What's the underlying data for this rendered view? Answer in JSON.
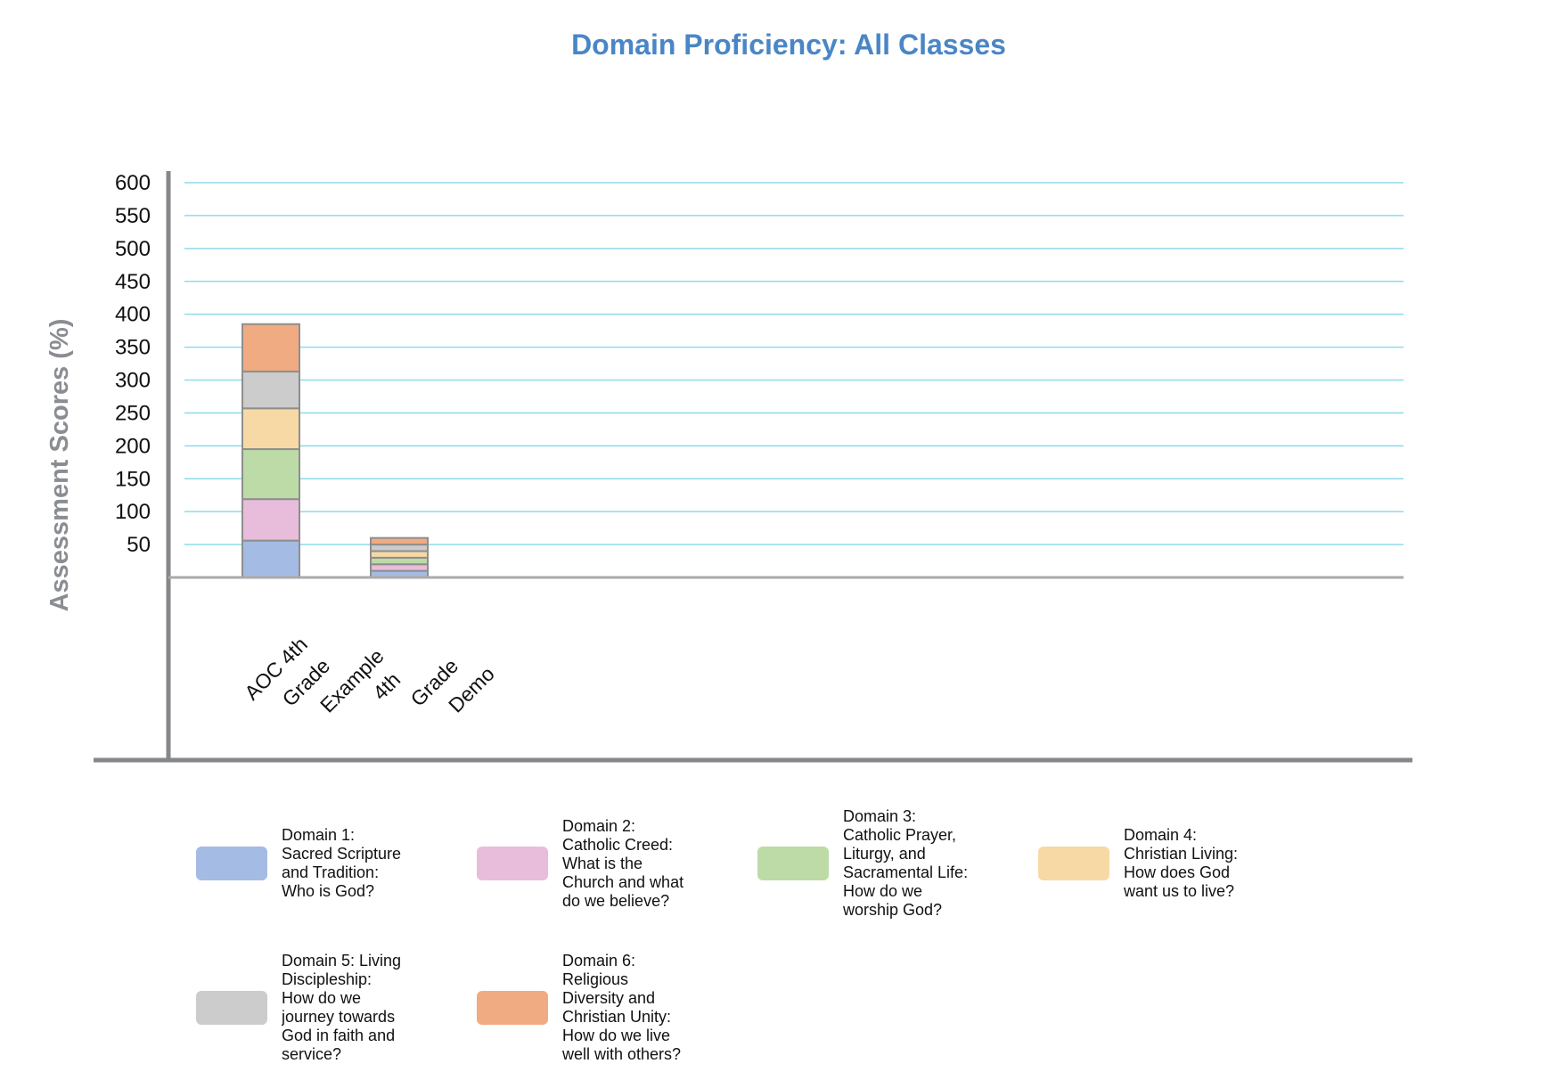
{
  "chart_data": {
    "type": "bar",
    "stacked": true,
    "title": "Domain Proficiency: All Classes",
    "ylabel": "Assessment Scores (%)",
    "xlabel": "",
    "ylim": [
      0,
      600
    ],
    "yticks": [
      50,
      100,
      150,
      200,
      250,
      300,
      350,
      400,
      450,
      500,
      550,
      600
    ],
    "grid": true,
    "legend_position": "bottom",
    "categories": [
      "AOC 4th Grade Example",
      "4th Grade Demo"
    ],
    "series": [
      {
        "name": "Domain 1: Sacred Scripture and Tradition: Who is God?",
        "color": "#a4bbe3",
        "values": [
          56,
          10
        ]
      },
      {
        "name": "Domain 2: Catholic Creed: What is the Church and what do we believe?",
        "color": "#e8bcdb",
        "values": [
          63,
          10
        ]
      },
      {
        "name": "Domain 3: Catholic Prayer, Liturgy, and Sacramental Life: How do we worship God?",
        "color": "#bcdba7",
        "values": [
          76,
          10
        ]
      },
      {
        "name": "Domain 4: Christian Living: How does God want us to live?",
        "color": "#f7d9a5",
        "values": [
          62,
          10
        ]
      },
      {
        "name": "Domain 5: Living Discipleship: How do we journey towards God in faith and service?",
        "color": "#cccccc",
        "values": [
          56,
          10
        ]
      },
      {
        "name": "Domain 6: Religious Diversity and Christian Unity: How do we live well with others?",
        "color": "#f0ab82",
        "values": [
          72,
          10
        ]
      }
    ]
  }
}
